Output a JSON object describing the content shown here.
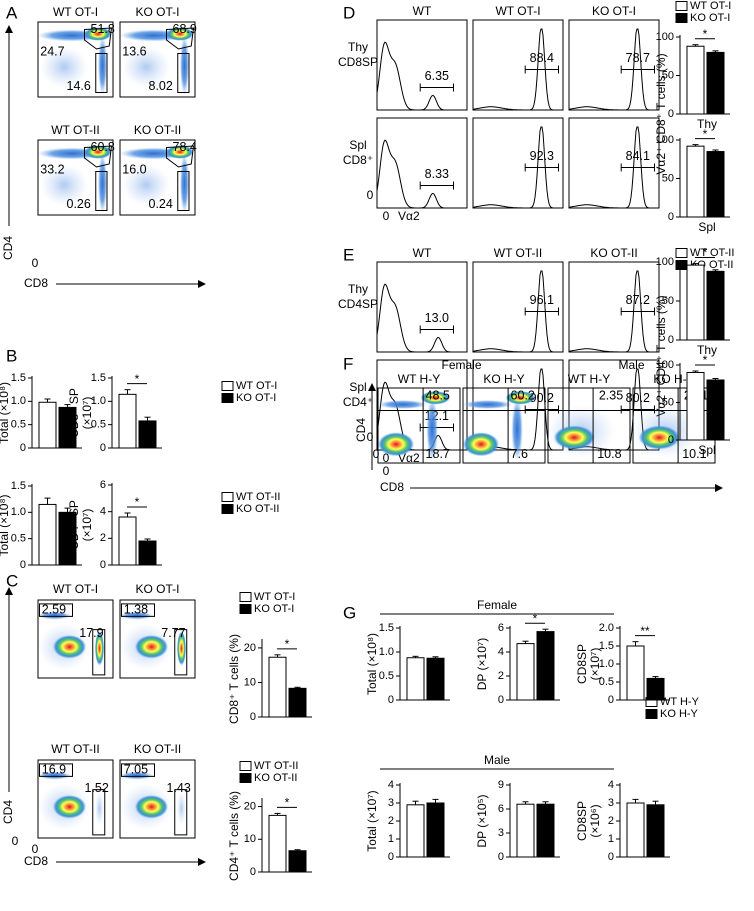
{
  "panel_labels": [
    "A",
    "B",
    "C",
    "D",
    "E",
    "F",
    "G"
  ],
  "bar_colors": [
    "#ffffff",
    "#000000"
  ],
  "legends": [
    [
      "WT OT-I",
      "KO OT-I"
    ],
    [
      "WT OT-II",
      "KO OT-II"
    ],
    [
      "WT OT-I",
      "KO OT-I"
    ],
    [
      "WT OT-II",
      "KO OT-II"
    ],
    [
      "WT OT-I",
      "KO OT-I"
    ],
    [
      "WT OT-II",
      "KO OT-II"
    ],
    [
      "WT H-Y",
      "KO H-Y"
    ]
  ],
  "flow": {
    "A": {
      "y_axis": "CD4",
      "x_axis": "CD8",
      "origins": [
        "0"
      ],
      "plots": [
        {
          "title": "WT OT-I",
          "gates": [
            "51.8",
            "24.7",
            "14.6"
          ]
        },
        {
          "title": "KO OT-I",
          "gates": [
            "68.9",
            "13.6",
            "8.02"
          ]
        },
        {
          "title": "WT OT-II",
          "gates": [
            "60.8",
            "33.2",
            "0.26"
          ]
        },
        {
          "title": "KO OT-II",
          "gates": [
            "78.4",
            "16.0",
            "0.24"
          ]
        }
      ]
    },
    "C": {
      "y_axis": "CD4",
      "x_axis": "CD8",
      "origins": [
        "0",
        "0"
      ],
      "plots": [
        {
          "title": "WT OT-I",
          "gates": [
            "2.59",
            "17.9"
          ]
        },
        {
          "title": "KO OT-I",
          "gates": [
            "1.38",
            "7.77"
          ]
        },
        {
          "title": "WT OT-II",
          "gates": [
            "16.9",
            "1.52"
          ]
        },
        {
          "title": "KO OT-II",
          "gates": [
            "7.05",
            "1.43"
          ]
        }
      ]
    },
    "D": {
      "columns": [
        "WT",
        "WT OT-I",
        "KO OT-I"
      ],
      "x_axis": "Vα2",
      "origins": [
        "0",
        "0"
      ],
      "ylabel": "Vα2⁺ CD8⁺ T cells (%)",
      "rows": [
        {
          "label": [
            "Thy",
            "CD8SP"
          ],
          "gates": [
            "6.35",
            "88.4",
            "78.7"
          ]
        },
        {
          "label": [
            "Spl",
            "CD8⁺"
          ],
          "gates": [
            "8.33",
            "92.3",
            "84.1"
          ]
        }
      ]
    },
    "E": {
      "columns": [
        "WT",
        "WT OT-II",
        "KO OT-II"
      ],
      "x_axis": "Vα2",
      "origins": [
        "0",
        "0"
      ],
      "ylabel": "Vα2⁺ CD4⁺ T cells (%)",
      "rows": [
        {
          "label": [
            "Thy",
            "CD4SP"
          ],
          "gates": [
            "13.0",
            "96.1",
            "87.2"
          ]
        },
        {
          "label": [
            "Spl",
            "CD4⁺"
          ],
          "gates": [
            "12.1",
            "90.2",
            "80.2"
          ]
        }
      ]
    },
    "F": {
      "groups": [
        "Female",
        "Male"
      ],
      "y_axis": "CD4",
      "x_axis": "CD8",
      "origins": [
        "0",
        "0"
      ],
      "plots": [
        {
          "title": "WT H-Y",
          "gates": [
            "48.5",
            "18.7"
          ]
        },
        {
          "title": "KO H-Y",
          "gates": [
            "60.2",
            "7.6"
          ]
        },
        {
          "title": "WT H-Y",
          "gates": [
            "2.35",
            "10.8"
          ]
        },
        {
          "title": "KO H-Y",
          "gates": [
            "2.01",
            "10.1"
          ]
        }
      ]
    }
  },
  "G": {
    "groups": [
      "Female",
      "Male"
    ]
  },
  "chart_data": [
    {
      "type": "bar",
      "ylabel": [
        "Total (×10⁸)"
      ],
      "ylim": [
        0,
        1.5
      ],
      "yticks": [
        0,
        0.5,
        {
          "value": 1,
          "label": "1.0"
        },
        1.5
      ],
      "values": [
        0.98,
        0.87
      ],
      "errors": [
        0.07,
        0.06
      ]
    },
    {
      "type": "bar",
      "ylabel": [
        "CD8⁺ SP",
        "(×10⁷)"
      ],
      "ylim": [
        0,
        1.5
      ],
      "yticks": [
        0,
        0.5,
        {
          "value": 1,
          "label": "1.0"
        },
        1.5
      ],
      "values": [
        1.15,
        0.58
      ],
      "errors": [
        0.1,
        0.08
      ],
      "significance": "*"
    },
    {
      "type": "bar",
      "ylabel": [
        "Total (×10⁸)"
      ],
      "ylim": [
        0,
        1.5
      ],
      "yticks": [
        0,
        0.5,
        {
          "value": 1,
          "label": "1.0"
        },
        1.5
      ],
      "values": [
        1.15,
        1.0
      ],
      "errors": [
        0.12,
        0.08
      ]
    },
    {
      "type": "bar",
      "ylabel": [
        "CD4⁺ SP",
        "(×10⁷)"
      ],
      "ylim": [
        0,
        6
      ],
      "yticks": [
        0,
        2,
        4,
        6
      ],
      "values": [
        3.6,
        1.8
      ],
      "errors": [
        0.3,
        0.15
      ],
      "significance": "*"
    },
    {
      "type": "bar",
      "ylabel": [
        "CD8⁺ T cells (%)"
      ],
      "ylim": [
        0,
        22
      ],
      "yticks": [
        0,
        10,
        20
      ],
      "values": [
        17.3,
        8.3
      ],
      "errors": [
        0.7,
        0.3
      ],
      "significance": "*"
    },
    {
      "type": "bar",
      "ylabel": [
        "CD4⁺ T cells (%)"
      ],
      "ylim": [
        0,
        22
      ],
      "yticks": [
        0,
        10,
        20
      ],
      "values": [
        17.3,
        6.5
      ],
      "errors": [
        0.6,
        0.3
      ],
      "significance": "*"
    },
    {
      "type": "bar",
      "xlabel": "Thy",
      "ylim": [
        0,
        100
      ],
      "yticks": [
        0,
        50,
        100
      ],
      "values": [
        88,
        80
      ],
      "errors": [
        2,
        2
      ],
      "significance": "*"
    },
    {
      "type": "bar",
      "xlabel": "Spl",
      "ylim": [
        0,
        100
      ],
      "yticks": [
        0,
        50,
        100
      ],
      "values": [
        92,
        85
      ],
      "errors": [
        2,
        2
      ],
      "significance": "*"
    },
    {
      "type": "bar",
      "xlabel": "Thy",
      "ylim": [
        0,
        100
      ],
      "yticks": [
        0,
        50,
        100
      ],
      "values": [
        96,
        88
      ],
      "errors": [
        2,
        2
      ],
      "significance": "*"
    },
    {
      "type": "bar",
      "xlabel": "Spl",
      "ylim": [
        0,
        100
      ],
      "yticks": [
        0,
        50,
        100
      ],
      "values": [
        90,
        80
      ],
      "errors": [
        2,
        2
      ],
      "significance": "*"
    },
    {
      "type": "bar",
      "ylabel": [
        "Total (×10⁸)"
      ],
      "ylim": [
        0,
        1.5
      ],
      "yticks": [
        0,
        0.5,
        {
          "value": 1,
          "label": "1.0"
        },
        1.5
      ],
      "values": [
        0.88,
        0.87
      ],
      "errors": [
        0.03,
        0.03
      ]
    },
    {
      "type": "bar",
      "ylabel": [
        "DP (×10⁷)"
      ],
      "ylim": [
        0,
        6
      ],
      "yticks": [
        0,
        2,
        4,
        6
      ],
      "values": [
        4.7,
        5.7
      ],
      "errors": [
        0.2,
        0.2
      ],
      "significance": "*"
    },
    {
      "type": "bar",
      "ylabel": [
        "CD8SP",
        "(×10⁷)"
      ],
      "ylim": [
        0,
        2
      ],
      "yticks": [
        0,
        0.5,
        {
          "value": 1,
          "label": "1.0"
        },
        1.5,
        {
          "value": 2,
          "label": "2.0"
        }
      ],
      "values": [
        1.5,
        0.6
      ],
      "errors": [
        0.12,
        0.05
      ],
      "significance": "**"
    },
    {
      "type": "bar",
      "ylabel": [
        "Total (×10⁷)"
      ],
      "ylim": [
        0,
        4
      ],
      "yticks": [
        0,
        1,
        2,
        3,
        4
      ],
      "values": [
        2.9,
        3.0
      ],
      "errors": [
        0.2,
        0.2
      ]
    },
    {
      "type": "bar",
      "ylabel": [
        "DP (×10⁵)"
      ],
      "ylim": [
        0,
        9
      ],
      "yticks": [
        0,
        3,
        6,
        9
      ],
      "values": [
        6.6,
        6.6
      ],
      "errors": [
        0.3,
        0.3
      ]
    },
    {
      "type": "bar",
      "ylabel": [
        "CD8SP",
        "(×10⁶)"
      ],
      "ylim": [
        0,
        4
      ],
      "yticks": [
        0,
        1,
        2,
        3,
        4
      ],
      "values": [
        3.0,
        2.9
      ],
      "errors": [
        0.2,
        0.2
      ]
    }
  ]
}
